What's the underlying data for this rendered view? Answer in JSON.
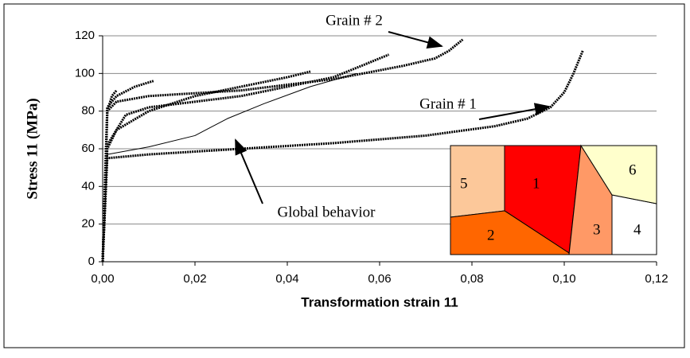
{
  "chart_data": {
    "type": "line",
    "x_label": "Transformation strain 11",
    "y_label": "Stress 11 (MPa)",
    "xlim": [
      0,
      0.12
    ],
    "xticks": [
      {
        "value": 0,
        "label": "0,00"
      },
      {
        "value": 0.02,
        "label": "0,02"
      },
      {
        "value": 0.04,
        "label": "0,04"
      },
      {
        "value": 0.06,
        "label": "0,06"
      },
      {
        "value": 0.08,
        "label": "0,08"
      },
      {
        "value": 0.1,
        "label": "0,10"
      },
      {
        "value": 0.12,
        "label": "0,12"
      }
    ],
    "ylim": [
      0,
      120
    ],
    "yticks": [
      0,
      20,
      40,
      60,
      80,
      100,
      120
    ],
    "grid": true,
    "series": [
      {
        "color": "#000000",
        "line_width": 3,
        "x": [
          0,
          0.001,
          0.002,
          0.003
        ],
        "values": [
          0,
          80,
          88,
          91
        ]
      },
      {
        "color": "#000000",
        "line_width": 3,
        "x": [
          0,
          0.001,
          0.003,
          0.007,
          0.011
        ],
        "values": [
          0,
          82,
          88,
          93,
          96
        ]
      },
      {
        "color": "#000000",
        "line_width": 3,
        "x": [
          0,
          0.001,
          0.003,
          0.01,
          0.02,
          0.03,
          0.04,
          0.045
        ],
        "values": [
          0,
          60,
          70,
          80,
          88,
          93,
          98,
          101
        ]
      },
      {
        "color": "#000000",
        "line_width": 3,
        "x": [
          0,
          0.001,
          0.005,
          0.01,
          0.03,
          0.05,
          0.062
        ],
        "values": [
          0,
          62,
          78,
          82,
          88,
          98,
          110
        ]
      },
      {
        "color": "#000000",
        "line_width": 3,
        "x": [
          0,
          0.001,
          0.003,
          0.01,
          0.03,
          0.05,
          0.065,
          0.072,
          0.075,
          0.078
        ],
        "values": [
          0,
          80,
          85,
          88,
          91,
          97,
          104,
          108,
          112,
          118
        ]
      },
      {
        "color": "#000000",
        "line_width": 3,
        "x": [
          0,
          0.001,
          0.01,
          0.03,
          0.05,
          0.07,
          0.085,
          0.092,
          0.097,
          0.1,
          0.102,
          0.104
        ],
        "values": [
          0,
          55,
          57,
          60,
          63,
          67,
          72,
          76,
          82,
          90,
          100,
          112
        ]
      },
      {
        "color": "#000000",
        "line_width": 1,
        "x": [
          0,
          0.001,
          0.01,
          0.02,
          0.027,
          0.035,
          0.045,
          0.055
        ],
        "values": [
          0,
          57,
          61,
          67,
          76,
          84,
          93,
          100
        ]
      }
    ],
    "annotations": [
      "Grain # 2",
      "Grain # 1",
      "Global behavior"
    ],
    "inset_labels": [
      "5",
      "1",
      "2",
      "3",
      "4",
      "6"
    ]
  }
}
